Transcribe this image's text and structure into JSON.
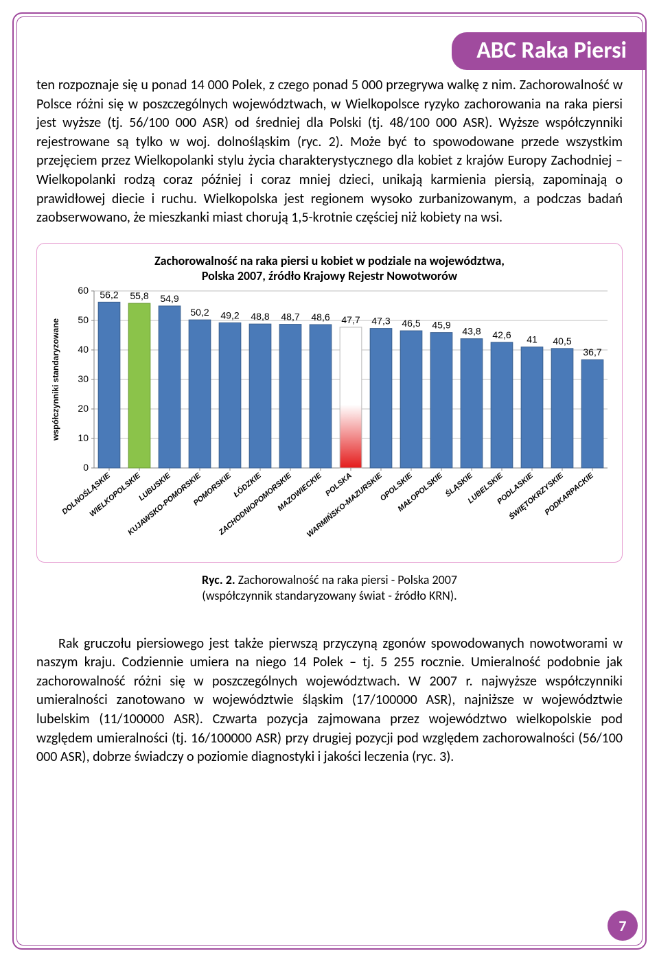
{
  "title": "ABC Raka Piersi",
  "paragraph1": "ten rozpoznaje się u ponad 14 000 Polek, z czego ponad 5 000 przegrywa walkę z nim. Zachorowalność w Polsce różni się w poszczególnych województwach, w Wielkopolsce ryzyko zachorowania na raka piersi jest wyższe (tj. 56/100 000 ASR) od średniej dla Polski (tj. 48/100 000 ASR). Wyższe współczynniki rejestrowane są tylko w woj. dolnośląskim (ryc. 2). Może być to spowodowane przede wszystkim przejęciem przez Wielkopolanki stylu życia charakterystycznego dla kobiet z  krajów Europy Zachodniej – Wielkopolanki rodzą coraz później i coraz mniej dzieci, unikają karmienia piersią, zapominają o prawidłowej diecie i ruchu. Wielkopolska jest regionem wysoko zurbanizowanym, a podczas badań zaobserwowano, że mieszkanki miast chorują 1,5-krotnie częściej niż kobiety na wsi.",
  "chart": {
    "type": "bar",
    "title_line1": "Zachorowalność na raka piersi u kobiet w podziale na województwa,",
    "title_line2": "Polska 2007, źródło Krajowy Rejestr Nowotworów",
    "ylabel": "współczynniki standaryzowane",
    "ylabel_fontsize": 12,
    "title_fontsize": 18,
    "ylim": [
      0,
      60
    ],
    "ytick_step": 10,
    "yticks": [
      0,
      10,
      20,
      30,
      40,
      50,
      60
    ],
    "categories": [
      "DOLNOŚLĄSKIE",
      "WIELKOPOLSKIE",
      "LUBUSKIE",
      "KUJAWSKO-POMORSKIE",
      "POMORSKIE",
      "ŁÓDZKIE",
      "ZACHODNIOPOMORSKIE",
      "MAZOWIECKIE",
      "POLSKA",
      "WARMIŃSKO-MAZURSKIE",
      "OPOLSKIE",
      "MAŁOPOLSKIE",
      "ŚLĄSKIE",
      "LUBELSKIE",
      "PODLASKIE",
      "ŚWIĘTOKRZYSKIE",
      "PODKARPACKIE"
    ],
    "values": [
      56.2,
      55.8,
      54.9,
      50.2,
      49.2,
      48.8,
      48.7,
      48.6,
      47.7,
      47.3,
      46.5,
      45.9,
      43.8,
      42.6,
      41,
      40.5,
      36.7
    ],
    "bar_fill": [
      "solid",
      "solid",
      "solid",
      "solid",
      "solid",
      "solid",
      "solid",
      "solid",
      "gradient",
      "solid",
      "solid",
      "solid",
      "solid",
      "solid",
      "solid",
      "solid",
      "solid"
    ],
    "bar_colors": [
      "#4a7ab8",
      "#8bc34a",
      "#4a7ab8",
      "#4a7ab8",
      "#4a7ab8",
      "#4a7ab8",
      "#4a7ab8",
      "#4a7ab8",
      "#ffffff",
      "#4a7ab8",
      "#4a7ab8",
      "#4a7ab8",
      "#4a7ab8",
      "#4a7ab8",
      "#4a7ab8",
      "#4a7ab8",
      "#4a7ab8"
    ],
    "bar_border_color": "#3a5f8f",
    "bar_border_color_green": "#6a9a36",
    "bar_width": 0.72,
    "gradient_from": "#e41b1b",
    "gradient_to": "#ffffff",
    "grid_color": "#808080",
    "axis_color": "#808080",
    "background_color": "#ffffff",
    "value_label_fontsize": 14,
    "value_label_color": "#000000",
    "xtick_fontsize": 11,
    "xtick_angle": -40
  },
  "caption_bold": "Ryc. 2.",
  "caption_rest1": " Zachorowalność na raka piersi - Polska 2007",
  "caption_rest2": "(współczynnik standaryzowany świat - źródło KRN).",
  "paragraph2": "Rak gruczołu piersiowego jest także pierwszą przyczyną zgonów spowodowanych nowotworami w naszym kraju. Codziennie umiera na niego 14 Polek – tj. 5 255 rocznie. Umieralność podobnie jak zachorowalność różni się w poszczególnych województwach. W 2007 r. najwyższe współczynniki umieralności zanotowano w  województwie śląskim (17/100000 ASR), najniższe w województwie lubelskim (11/100000 ASR). Czwarta pozycja zajmowana przez województwo wielkopolskie pod względem umieralności (tj. 16/100000 ASR) przy drugiej pozycji pod względem zachorowalności (56/100 000 ASR), dobrze świadczy o poziomie diagnostyki i jakości leczenia (ryc. 3).",
  "page_number": "7",
  "colors": {
    "accent": "#a04b9e",
    "chart_border": "#e59bd0"
  }
}
